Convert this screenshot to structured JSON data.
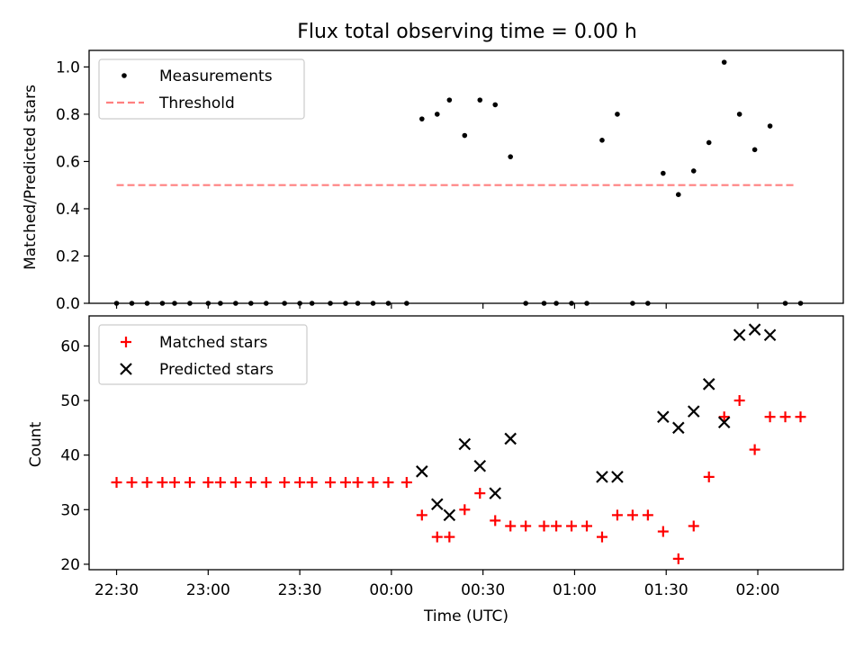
{
  "chart_data": [
    {
      "type": "scatter",
      "title": "Flux total observing time = 0.00 h",
      "xlabel": "",
      "ylabel": "Matched/Predicted stars",
      "ylim": [
        0,
        1.07
      ],
      "yticks": [
        "0.0",
        "0.2",
        "0.4",
        "0.6",
        "0.8",
        "1.0"
      ],
      "legend": {
        "position": "top-left",
        "entries": [
          "Measurements",
          "Threshold"
        ]
      },
      "threshold": {
        "value": 0.5,
        "x_start": "22:30",
        "x_end": "02:12",
        "color": "#ff8080"
      },
      "series": [
        {
          "name": "Measurements",
          "marker": "dot",
          "color": "#000000",
          "points": [
            [
              "22:30",
              0
            ],
            [
              "22:35",
              0
            ],
            [
              "22:40",
              0
            ],
            [
              "22:45",
              0
            ],
            [
              "22:49",
              0
            ],
            [
              "22:54",
              0
            ],
            [
              "23:00",
              0
            ],
            [
              "23:04",
              0
            ],
            [
              "23:09",
              0
            ],
            [
              "23:14",
              0
            ],
            [
              "23:19",
              0
            ],
            [
              "23:25",
              0
            ],
            [
              "23:30",
              0
            ],
            [
              "23:34",
              0
            ],
            [
              "23:40",
              0
            ],
            [
              "23:45",
              0
            ],
            [
              "23:49",
              0
            ],
            [
              "23:54",
              0
            ],
            [
              "23:59",
              0
            ],
            [
              "00:05",
              0
            ],
            [
              "00:10",
              0.78
            ],
            [
              "00:15",
              0.8
            ],
            [
              "00:19",
              0.86
            ],
            [
              "00:24",
              0.71
            ],
            [
              "00:29",
              0.86
            ],
            [
              "00:34",
              0.84
            ],
            [
              "00:39",
              0.62
            ],
            [
              "00:44",
              0
            ],
            [
              "00:50",
              0
            ],
            [
              "00:54",
              0
            ],
            [
              "00:59",
              0
            ],
            [
              "01:04",
              0
            ],
            [
              "01:09",
              0.69
            ],
            [
              "01:14",
              0.8
            ],
            [
              "01:19",
              0
            ],
            [
              "01:24",
              0
            ],
            [
              "01:29",
              0.55
            ],
            [
              "01:34",
              0.46
            ],
            [
              "01:39",
              0.56
            ],
            [
              "01:44",
              0.68
            ],
            [
              "01:49",
              1.02
            ],
            [
              "01:54",
              0.8
            ],
            [
              "01:59",
              0.65
            ],
            [
              "02:04",
              0.75
            ],
            [
              "02:09",
              0
            ],
            [
              "02:14",
              0
            ]
          ]
        }
      ]
    },
    {
      "type": "scatter",
      "title": "",
      "xlabel": "Time (UTC)",
      "ylabel": "Count",
      "ylim": [
        19,
        65.5
      ],
      "yticks": [
        "20",
        "30",
        "40",
        "50",
        "60"
      ],
      "xticks": [
        "22:30",
        "23:00",
        "23:30",
        "00:00",
        "00:30",
        "01:00",
        "01:30",
        "02:00"
      ],
      "xlim": [
        "22:21",
        "02:28"
      ],
      "legend": {
        "position": "top-left",
        "entries": [
          "Matched stars",
          "Predicted stars"
        ]
      },
      "series": [
        {
          "name": "Matched stars",
          "marker": "plus",
          "color": "#ff0000",
          "points": [
            [
              "22:30",
              35
            ],
            [
              "22:35",
              35
            ],
            [
              "22:40",
              35
            ],
            [
              "22:45",
              35
            ],
            [
              "22:49",
              35
            ],
            [
              "22:54",
              35
            ],
            [
              "23:00",
              35
            ],
            [
              "23:04",
              35
            ],
            [
              "23:09",
              35
            ],
            [
              "23:14",
              35
            ],
            [
              "23:19",
              35
            ],
            [
              "23:25",
              35
            ],
            [
              "23:30",
              35
            ],
            [
              "23:34",
              35
            ],
            [
              "23:40",
              35
            ],
            [
              "23:45",
              35
            ],
            [
              "23:49",
              35
            ],
            [
              "23:54",
              35
            ],
            [
              "23:59",
              35
            ],
            [
              "00:05",
              35
            ],
            [
              "00:10",
              29
            ],
            [
              "00:15",
              25
            ],
            [
              "00:19",
              25
            ],
            [
              "00:24",
              30
            ],
            [
              "00:29",
              33
            ],
            [
              "00:34",
              28
            ],
            [
              "00:39",
              27
            ],
            [
              "00:44",
              27
            ],
            [
              "00:50",
              27
            ],
            [
              "00:54",
              27
            ],
            [
              "00:59",
              27
            ],
            [
              "01:04",
              27
            ],
            [
              "01:09",
              25
            ],
            [
              "01:14",
              29
            ],
            [
              "01:19",
              29
            ],
            [
              "01:24",
              29
            ],
            [
              "01:29",
              26
            ],
            [
              "01:34",
              21
            ],
            [
              "01:39",
              27
            ],
            [
              "01:44",
              36
            ],
            [
              "01:49",
              47
            ],
            [
              "01:54",
              50
            ],
            [
              "01:59",
              41
            ],
            [
              "02:04",
              47
            ],
            [
              "02:09",
              47
            ],
            [
              "02:14",
              47
            ]
          ]
        },
        {
          "name": "Predicted stars",
          "marker": "x",
          "color": "#000000",
          "points": [
            [
              "00:10",
              37
            ],
            [
              "00:15",
              31
            ],
            [
              "00:19",
              29
            ],
            [
              "00:24",
              42
            ],
            [
              "00:29",
              38
            ],
            [
              "00:34",
              33
            ],
            [
              "00:39",
              43
            ],
            [
              "01:09",
              36
            ],
            [
              "01:14",
              36
            ],
            [
              "01:29",
              47
            ],
            [
              "01:34",
              45
            ],
            [
              "01:39",
              48
            ],
            [
              "01:44",
              53
            ],
            [
              "01:49",
              46
            ],
            [
              "01:54",
              62
            ],
            [
              "01:59",
              63
            ],
            [
              "02:04",
              62
            ]
          ]
        }
      ]
    }
  ]
}
